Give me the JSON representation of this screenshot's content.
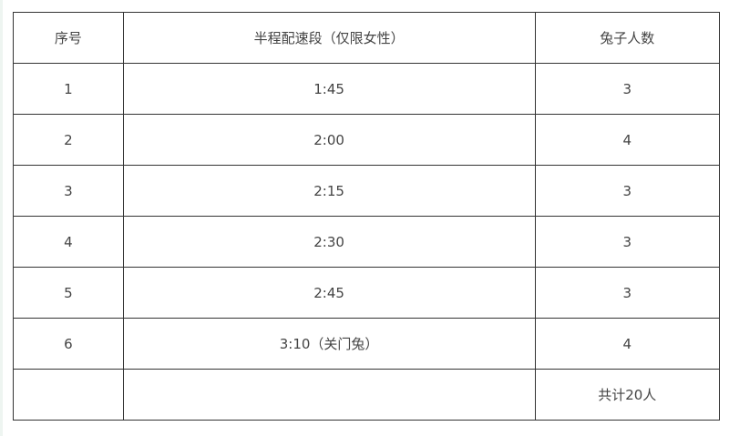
{
  "table": {
    "headers": [
      "序号",
      "半程配速段（仅限女性）",
      "兔子人数"
    ],
    "rows": [
      [
        "1",
        "1:45",
        "3"
      ],
      [
        "2",
        "2:00",
        "4"
      ],
      [
        "3",
        "2:15",
        "3"
      ],
      [
        "4",
        "2:30",
        "3"
      ],
      [
        "5",
        "2:45",
        "3"
      ],
      [
        "6",
        "3:10（关门兔）",
        "4"
      ],
      [
        "",
        "",
        "共计20人"
      ]
    ]
  }
}
